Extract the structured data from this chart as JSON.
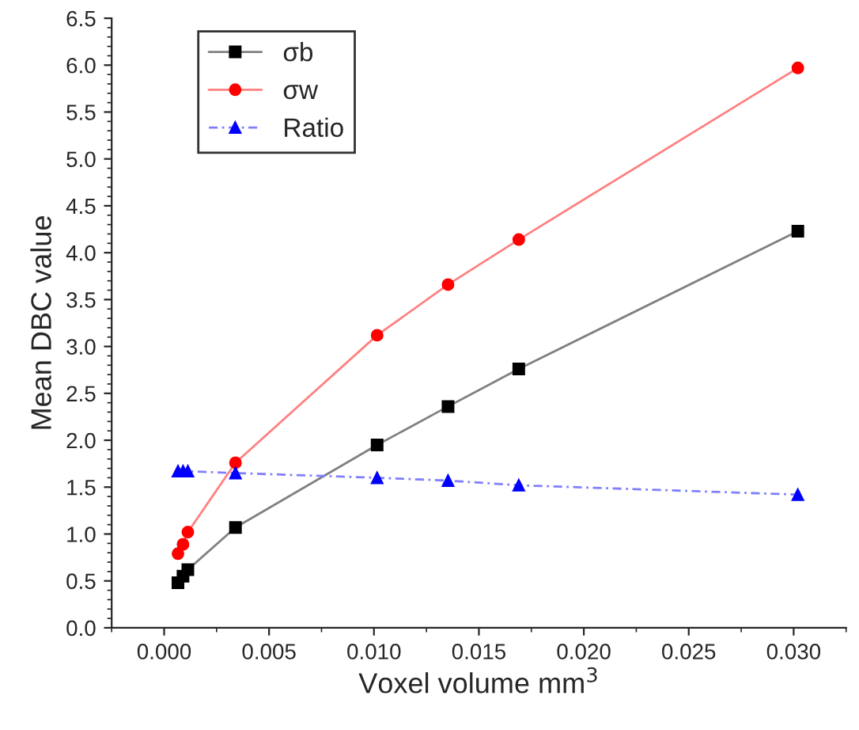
{
  "chart_data": {
    "type": "line",
    "xlabel": "Voxel volume mm$^{3}$",
    "ylabel": "Mean DBC value",
    "x": [
      0.00066,
      0.0009,
      0.00113,
      0.0034,
      0.01015,
      0.01353,
      0.0169,
      0.0302
    ],
    "series": [
      {
        "name": "σb",
        "color": "#000000",
        "marker": "square",
        "line_style": "solid",
        "values": [
          0.48,
          0.55,
          0.62,
          1.07,
          1.95,
          2.36,
          2.76,
          4.23
        ]
      },
      {
        "name": "σw",
        "color": "#ff0000",
        "marker": "circle",
        "line_style": "solid",
        "values": [
          0.79,
          0.89,
          1.02,
          1.76,
          3.12,
          3.66,
          4.14,
          5.97
        ]
      },
      {
        "name": "Ratio",
        "color": "#0000ff",
        "marker": "triangle",
        "line_style": "dotted",
        "values": [
          1.67,
          1.67,
          1.67,
          1.65,
          1.6,
          1.57,
          1.52,
          1.42
        ]
      }
    ],
    "xlim": [
      -0.0025,
      0.0325
    ],
    "xticks": [
      {
        "value": 0,
        "label": "0.000"
      },
      {
        "value": 0.005,
        "label": "0.005"
      },
      {
        "value": 0.01,
        "label": "0.010"
      },
      {
        "value": 0.015,
        "label": "0.015"
      },
      {
        "value": 0.02,
        "label": "0.020"
      },
      {
        "value": 0.025,
        "label": "0.025"
      },
      {
        "value": 0.03,
        "label": "0.030"
      }
    ],
    "ylim": [
      0,
      6.5
    ],
    "yticks": [
      {
        "value": 0,
        "label": "0.0"
      },
      {
        "value": 0.5,
        "label": "0.5"
      },
      {
        "value": 1,
        "label": "1.0"
      },
      {
        "value": 1.5,
        "label": "1.5"
      },
      {
        "value": 2,
        "label": "2.0"
      },
      {
        "value": 2.5,
        "label": "2.5"
      },
      {
        "value": 3,
        "label": "3.0"
      },
      {
        "value": 3.5,
        "label": "3.5"
      },
      {
        "value": 4,
        "label": "4.0"
      },
      {
        "value": 4.5,
        "label": "4.5"
      },
      {
        "value": 5,
        "label": "5.0"
      },
      {
        "value": 5.5,
        "label": "5.5"
      },
      {
        "value": 6,
        "label": "6.0"
      },
      {
        "value": 6.5,
        "label": "6.5"
      }
    ],
    "grid": false,
    "legend": "top left"
  }
}
